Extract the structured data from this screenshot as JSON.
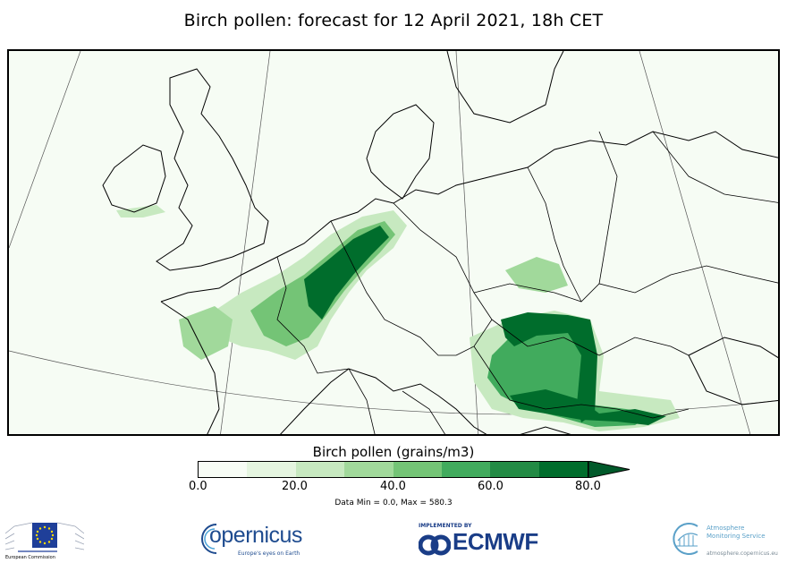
{
  "title": "Birch pollen: forecast for 12 April 2021, 18h CET",
  "map": {
    "region": "Europe",
    "background_color": "#f6fcf4",
    "coastline_color": "#000000",
    "hotspots": [
      {
        "area": "Netherlands / northern Germany",
        "level": "high"
      },
      {
        "area": "Belgium / Luxembourg",
        "level": "high"
      },
      {
        "area": "Northern France",
        "level": "medium"
      },
      {
        "area": "Hungary / Slovakia",
        "level": "high"
      },
      {
        "area": "Croatia / Serbia",
        "level": "high"
      },
      {
        "area": "Romania / Bulgaria",
        "level": "medium"
      }
    ]
  },
  "colorbar": {
    "label": "Birch pollen (grains/m3)",
    "ticks": [
      "0.0",
      "20.0",
      "40.0",
      "60.0",
      "80.0"
    ],
    "colors": [
      "#f7fcf5",
      "#e5f5e0",
      "#c7e9c0",
      "#a1d99b",
      "#74c476",
      "#41ab5d",
      "#238b45",
      "#006d2c"
    ],
    "extend_color": "#00592a"
  },
  "data_range": "Data Min = 0.0, Max = 580.3",
  "logos": {
    "ec": "European Commission",
    "copernicus_name": "opernicus",
    "copernicus_tagline": "Europe's eyes on Earth",
    "ecmwf_implemented": "IMPLEMENTED BY",
    "ecmwf_name": "ECMWF",
    "cams_name_line1": "Atmosphere",
    "cams_name_line2": "Monitoring Service",
    "cams_url": "atmosphere.copernicus.eu"
  }
}
